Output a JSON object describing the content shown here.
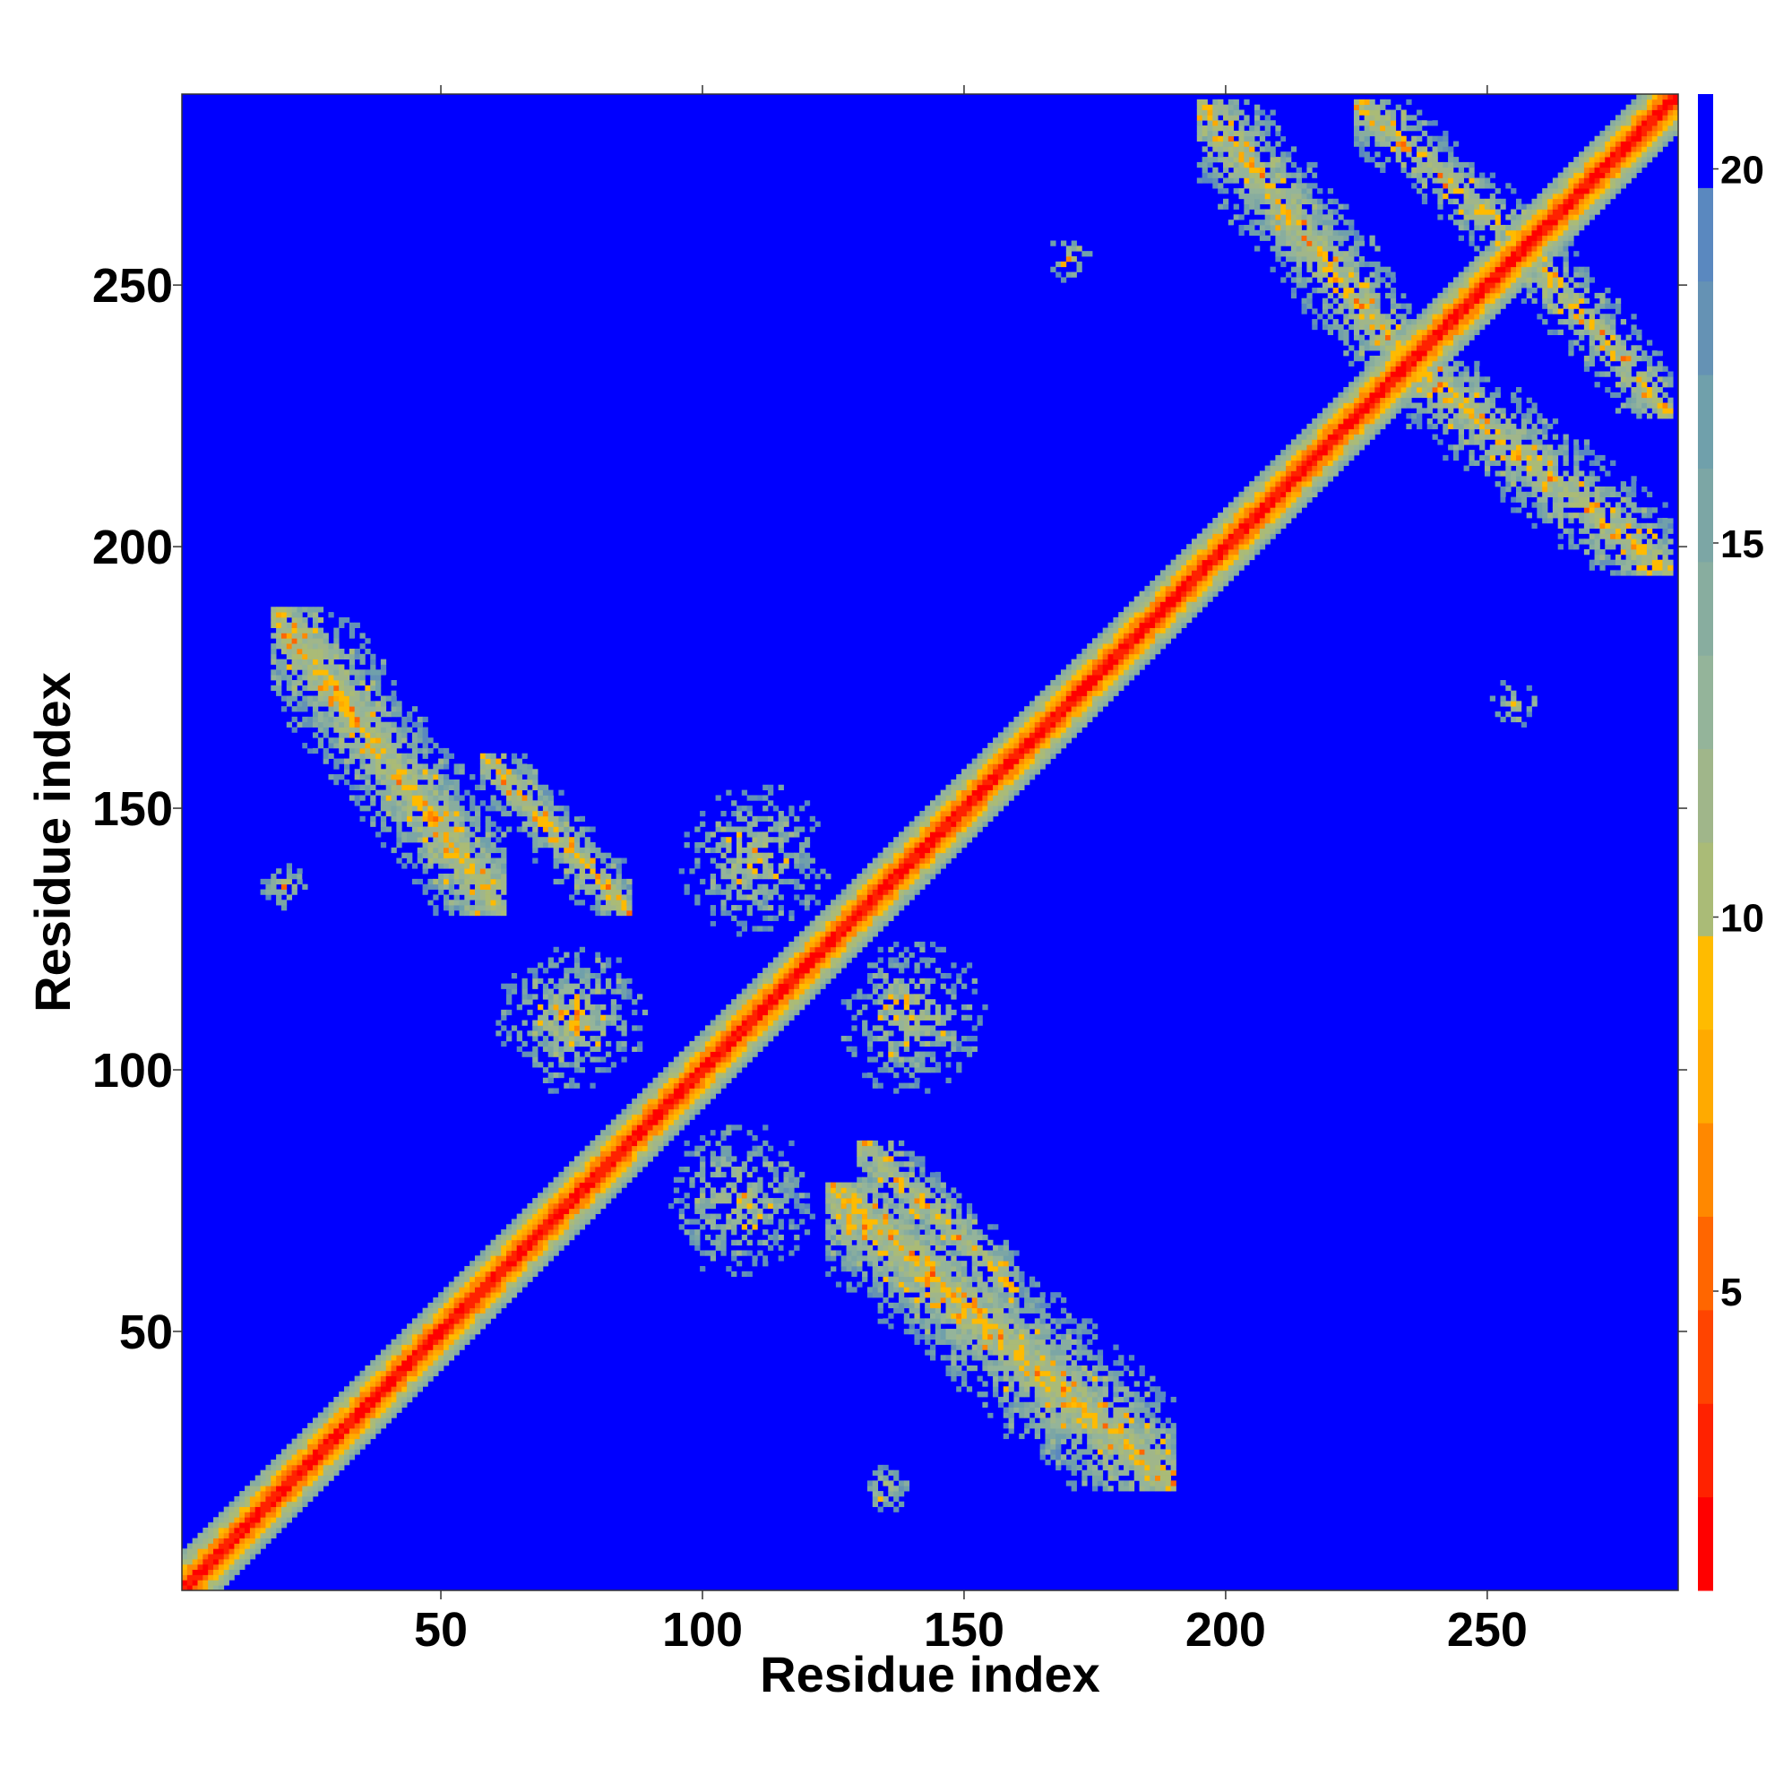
{
  "chart_data": {
    "type": "heatmap",
    "title": "",
    "xlabel": "Residue index",
    "ylabel": "Residue index",
    "xlim": [
      1,
      286
    ],
    "ylim": [
      1,
      286
    ],
    "x_ticks": [
      50,
      100,
      150,
      200,
      250
    ],
    "y_ticks": [
      50,
      100,
      150,
      200,
      250
    ],
    "colorbar": {
      "ticks": [
        5,
        10,
        15,
        20
      ],
      "range": [
        1,
        21
      ],
      "colors": [
        "#ff0000",
        "#ff2200",
        "#ff4400",
        "#ff6600",
        "#ff8800",
        "#ffaa00",
        "#ffbb00",
        "#aabb77",
        "#a0b68a",
        "#94b49a",
        "#88ad9f",
        "#7ca6a5",
        "#70a0ab",
        "#6592b4",
        "#5a88bf",
        "#0000ff"
      ]
    },
    "background_color": "#0000ff",
    "diagonal_band": {
      "from": 1,
      "to": 286,
      "core_halfwidth": 1.5,
      "band_halfwidth": 7
    },
    "contact_regions": [
      {
        "x": [
          18,
          62
        ],
        "y": [
          130,
          188
        ],
        "along": "anti",
        "density": 0.75
      },
      {
        "x": [
          58,
          86
        ],
        "y": [
          130,
          160
        ],
        "along": "anti",
        "density": 0.7
      },
      {
        "x": [
          124,
          190
        ],
        "y": [
          20,
          78
        ],
        "along": "anti",
        "density": 0.75
      },
      {
        "x": [
          130,
          160
        ],
        "y": [
          58,
          86
        ],
        "along": "anti",
        "density": 0.7
      },
      {
        "x": [
          60,
          90
        ],
        "y": [
          95,
          125
        ],
        "along": "none",
        "density": 0.6
      },
      {
        "x": [
          92,
          122
        ],
        "y": [
          60,
          90
        ],
        "along": "none",
        "density": 0.6
      },
      {
        "x": [
          95,
          125
        ],
        "y": [
          125,
          155
        ],
        "along": "none",
        "density": 0.55
      },
      {
        "x": [
          125,
          155
        ],
        "y": [
          95,
          125
        ],
        "along": "none",
        "density": 0.55
      },
      {
        "x": [
          195,
          235
        ],
        "y": [
          235,
          285
        ],
        "along": "anti",
        "density": 0.7
      },
      {
        "x": [
          235,
          285
        ],
        "y": [
          195,
          235
        ],
        "along": "anti",
        "density": 0.7
      },
      {
        "x": [
          225,
          260
        ],
        "y": [
          255,
          285
        ],
        "along": "anti",
        "density": 0.65
      },
      {
        "x": [
          255,
          285
        ],
        "y": [
          225,
          260
        ],
        "along": "anti",
        "density": 0.65
      },
      {
        "x": [
          15,
          25
        ],
        "y": [
          130,
          140
        ],
        "along": "none",
        "density": 0.6
      },
      {
        "x": [
          130,
          140
        ],
        "y": [
          15,
          25
        ],
        "along": "none",
        "density": 0.6
      },
      {
        "x": [
          165,
          175
        ],
        "y": [
          250,
          260
        ],
        "along": "none",
        "density": 0.4
      },
      {
        "x": [
          250,
          260
        ],
        "y": [
          165,
          175
        ],
        "along": "none",
        "density": 0.4
      }
    ]
  }
}
